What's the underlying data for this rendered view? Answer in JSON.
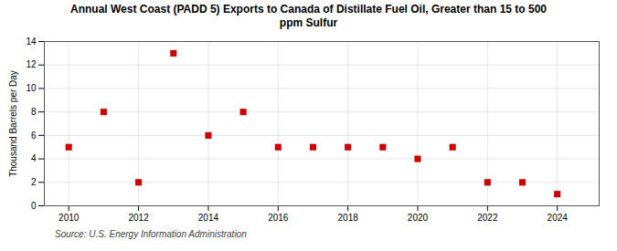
{
  "chart_data": {
    "type": "scatter",
    "title": "Annual West Coast (PADD 5) Exports to Canada of Distillate Fuel Oil, Greater than 15 to 500\nppm Sulfur",
    "ylabel": "Thousand Barrels per Day",
    "source": "Source: U.S. Energy Information Administration",
    "x": [
      2010,
      2011,
      2012,
      2013,
      2014,
      2015,
      2016,
      2017,
      2018,
      2019,
      2020,
      2021,
      2022,
      2023,
      2024
    ],
    "values": [
      5.0,
      8.0,
      2.0,
      13.0,
      6.0,
      8.0,
      5.0,
      5.0,
      5.0,
      5.0,
      4.0,
      5.0,
      2.0,
      2.0,
      1.0
    ],
    "color": "#cc0000",
    "marker": "square",
    "xlim": [
      2009.3,
      2025.2
    ],
    "xticks": [
      2010,
      2012,
      2014,
      2016,
      2018,
      2020,
      2022,
      2024
    ],
    "ylim": [
      0,
      14
    ],
    "yticks": [
      0,
      2,
      4,
      6,
      8,
      10,
      12,
      14
    ],
    "grid": true
  }
}
